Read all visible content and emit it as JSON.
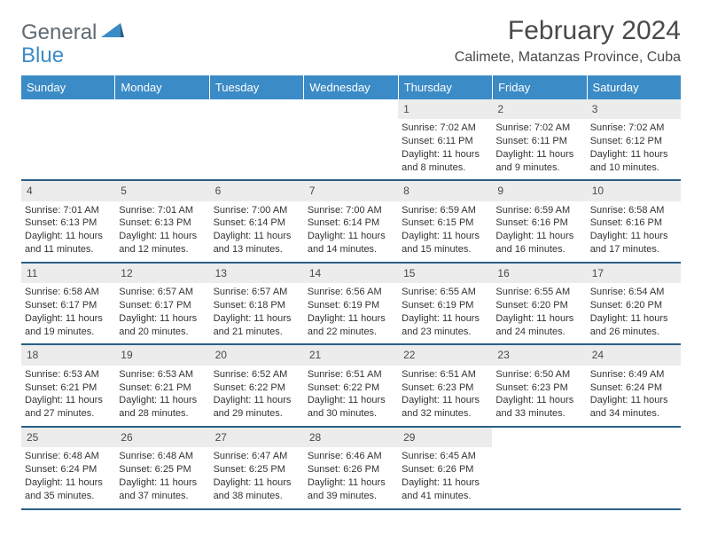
{
  "logo": {
    "text_a": "General",
    "text_b": "Blue"
  },
  "title": "February 2024",
  "location": "Calimete, Matanzas Province, Cuba",
  "colors": {
    "header_bar": "#3b8bc6",
    "week_divider": "#2b5f85",
    "daynum_bg": "#ececec",
    "text_dark": "#4a4a4a",
    "body_text": "#333333"
  },
  "day_names": [
    "Sunday",
    "Monday",
    "Tuesday",
    "Wednesday",
    "Thursday",
    "Friday",
    "Saturday"
  ],
  "weeks": [
    [
      null,
      null,
      null,
      null,
      {
        "n": "1",
        "sr": "Sunrise: 7:02 AM",
        "ss": "Sunset: 6:11 PM",
        "d1": "Daylight: 11 hours",
        "d2": "and 8 minutes."
      },
      {
        "n": "2",
        "sr": "Sunrise: 7:02 AM",
        "ss": "Sunset: 6:11 PM",
        "d1": "Daylight: 11 hours",
        "d2": "and 9 minutes."
      },
      {
        "n": "3",
        "sr": "Sunrise: 7:02 AM",
        "ss": "Sunset: 6:12 PM",
        "d1": "Daylight: 11 hours",
        "d2": "and 10 minutes."
      }
    ],
    [
      {
        "n": "4",
        "sr": "Sunrise: 7:01 AM",
        "ss": "Sunset: 6:13 PM",
        "d1": "Daylight: 11 hours",
        "d2": "and 11 minutes."
      },
      {
        "n": "5",
        "sr": "Sunrise: 7:01 AM",
        "ss": "Sunset: 6:13 PM",
        "d1": "Daylight: 11 hours",
        "d2": "and 12 minutes."
      },
      {
        "n": "6",
        "sr": "Sunrise: 7:00 AM",
        "ss": "Sunset: 6:14 PM",
        "d1": "Daylight: 11 hours",
        "d2": "and 13 minutes."
      },
      {
        "n": "7",
        "sr": "Sunrise: 7:00 AM",
        "ss": "Sunset: 6:14 PM",
        "d1": "Daylight: 11 hours",
        "d2": "and 14 minutes."
      },
      {
        "n": "8",
        "sr": "Sunrise: 6:59 AM",
        "ss": "Sunset: 6:15 PM",
        "d1": "Daylight: 11 hours",
        "d2": "and 15 minutes."
      },
      {
        "n": "9",
        "sr": "Sunrise: 6:59 AM",
        "ss": "Sunset: 6:16 PM",
        "d1": "Daylight: 11 hours",
        "d2": "and 16 minutes."
      },
      {
        "n": "10",
        "sr": "Sunrise: 6:58 AM",
        "ss": "Sunset: 6:16 PM",
        "d1": "Daylight: 11 hours",
        "d2": "and 17 minutes."
      }
    ],
    [
      {
        "n": "11",
        "sr": "Sunrise: 6:58 AM",
        "ss": "Sunset: 6:17 PM",
        "d1": "Daylight: 11 hours",
        "d2": "and 19 minutes."
      },
      {
        "n": "12",
        "sr": "Sunrise: 6:57 AM",
        "ss": "Sunset: 6:17 PM",
        "d1": "Daylight: 11 hours",
        "d2": "and 20 minutes."
      },
      {
        "n": "13",
        "sr": "Sunrise: 6:57 AM",
        "ss": "Sunset: 6:18 PM",
        "d1": "Daylight: 11 hours",
        "d2": "and 21 minutes."
      },
      {
        "n": "14",
        "sr": "Sunrise: 6:56 AM",
        "ss": "Sunset: 6:19 PM",
        "d1": "Daylight: 11 hours",
        "d2": "and 22 minutes."
      },
      {
        "n": "15",
        "sr": "Sunrise: 6:55 AM",
        "ss": "Sunset: 6:19 PM",
        "d1": "Daylight: 11 hours",
        "d2": "and 23 minutes."
      },
      {
        "n": "16",
        "sr": "Sunrise: 6:55 AM",
        "ss": "Sunset: 6:20 PM",
        "d1": "Daylight: 11 hours",
        "d2": "and 24 minutes."
      },
      {
        "n": "17",
        "sr": "Sunrise: 6:54 AM",
        "ss": "Sunset: 6:20 PM",
        "d1": "Daylight: 11 hours",
        "d2": "and 26 minutes."
      }
    ],
    [
      {
        "n": "18",
        "sr": "Sunrise: 6:53 AM",
        "ss": "Sunset: 6:21 PM",
        "d1": "Daylight: 11 hours",
        "d2": "and 27 minutes."
      },
      {
        "n": "19",
        "sr": "Sunrise: 6:53 AM",
        "ss": "Sunset: 6:21 PM",
        "d1": "Daylight: 11 hours",
        "d2": "and 28 minutes."
      },
      {
        "n": "20",
        "sr": "Sunrise: 6:52 AM",
        "ss": "Sunset: 6:22 PM",
        "d1": "Daylight: 11 hours",
        "d2": "and 29 minutes."
      },
      {
        "n": "21",
        "sr": "Sunrise: 6:51 AM",
        "ss": "Sunset: 6:22 PM",
        "d1": "Daylight: 11 hours",
        "d2": "and 30 minutes."
      },
      {
        "n": "22",
        "sr": "Sunrise: 6:51 AM",
        "ss": "Sunset: 6:23 PM",
        "d1": "Daylight: 11 hours",
        "d2": "and 32 minutes."
      },
      {
        "n": "23",
        "sr": "Sunrise: 6:50 AM",
        "ss": "Sunset: 6:23 PM",
        "d1": "Daylight: 11 hours",
        "d2": "and 33 minutes."
      },
      {
        "n": "24",
        "sr": "Sunrise: 6:49 AM",
        "ss": "Sunset: 6:24 PM",
        "d1": "Daylight: 11 hours",
        "d2": "and 34 minutes."
      }
    ],
    [
      {
        "n": "25",
        "sr": "Sunrise: 6:48 AM",
        "ss": "Sunset: 6:24 PM",
        "d1": "Daylight: 11 hours",
        "d2": "and 35 minutes."
      },
      {
        "n": "26",
        "sr": "Sunrise: 6:48 AM",
        "ss": "Sunset: 6:25 PM",
        "d1": "Daylight: 11 hours",
        "d2": "and 37 minutes."
      },
      {
        "n": "27",
        "sr": "Sunrise: 6:47 AM",
        "ss": "Sunset: 6:25 PM",
        "d1": "Daylight: 11 hours",
        "d2": "and 38 minutes."
      },
      {
        "n": "28",
        "sr": "Sunrise: 6:46 AM",
        "ss": "Sunset: 6:26 PM",
        "d1": "Daylight: 11 hours",
        "d2": "and 39 minutes."
      },
      {
        "n": "29",
        "sr": "Sunrise: 6:45 AM",
        "ss": "Sunset: 6:26 PM",
        "d1": "Daylight: 11 hours",
        "d2": "and 41 minutes."
      },
      null,
      null
    ]
  ]
}
